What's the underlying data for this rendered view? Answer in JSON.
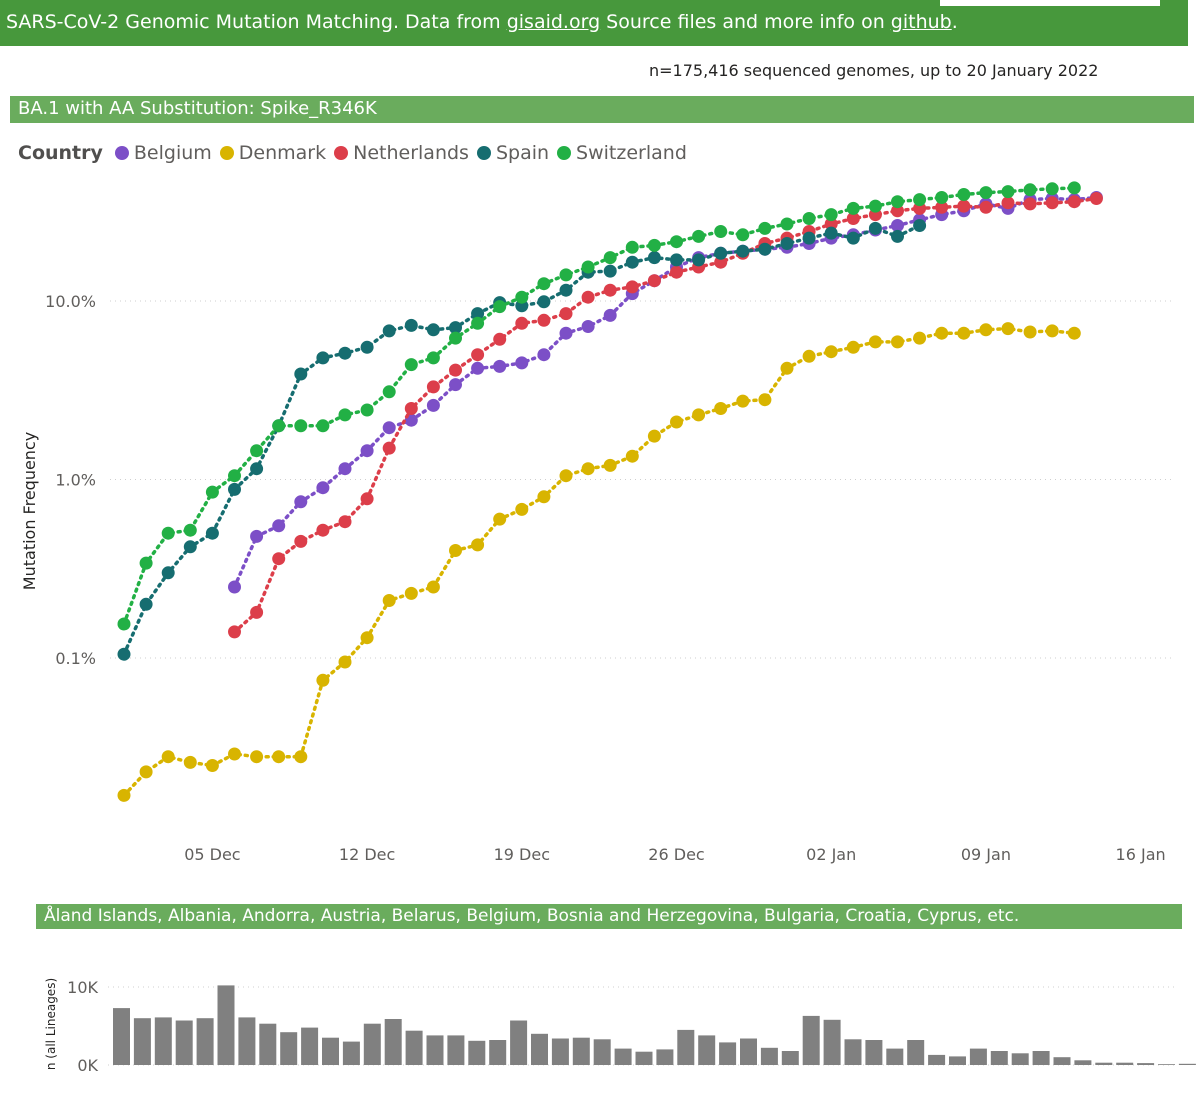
{
  "header": {
    "text_before": "SARS-CoV-2 Genomic Mutation Matching. Data from ",
    "link1": "gisaid.org",
    "text_middle": " Source files and more info on ",
    "link2": "github",
    "text_after": "."
  },
  "genome_count": "n=175,416 sequenced genomes, up to 20 January 2022",
  "colors": {
    "header_bg": "#47983c",
    "section_bg": "#6aac5d",
    "bar_color": "#808080"
  },
  "chart_data": [
    {
      "type": "line",
      "title": "BA.1 with AA Substitution: Spike_R346K",
      "ylabel": "Mutation Frequency",
      "yscale": "log",
      "ylim": [
        0.01,
        50
      ],
      "y_ticks": [
        0.1,
        1.0,
        10.0
      ],
      "y_tick_labels": [
        "0.1%",
        "1.0%",
        "10.0%"
      ],
      "x_start": "2021-12-01",
      "x_ticks": [
        {
          "day": 4,
          "label": "05 Dec"
        },
        {
          "day": 11,
          "label": "12 Dec"
        },
        {
          "day": 18,
          "label": "19 Dec"
        },
        {
          "day": 25,
          "label": "26 Dec"
        },
        {
          "day": 32,
          "label": "02 Jan"
        },
        {
          "day": 39,
          "label": "09 Jan"
        },
        {
          "day": 46,
          "label": "16 Jan"
        }
      ],
      "legend_title": "Country",
      "series": [
        {
          "name": "Belgium",
          "color": "#7c4fc7",
          "x_start": 5,
          "values": [
            0.25,
            0.48,
            0.55,
            0.75,
            0.9,
            1.15,
            1.45,
            1.95,
            2.15,
            2.6,
            3.4,
            4.2,
            4.3,
            4.5,
            5.0,
            6.6,
            7.2,
            8.3,
            11.0,
            13.0,
            15.5,
            17.5,
            18.5,
            19.0,
            19.5,
            20.0,
            21.0,
            22.5,
            23.5,
            25.0,
            26.5,
            28.5,
            30.5,
            32.0,
            35.0,
            33.0,
            37.0,
            37.5,
            37.0,
            38.0
          ]
        },
        {
          "name": "Denmark",
          "color": "#d8b400",
          "x_start": 0,
          "values": [
            0.017,
            0.023,
            0.028,
            0.026,
            0.025,
            0.029,
            0.028,
            0.028,
            0.028,
            0.075,
            0.095,
            0.13,
            0.21,
            0.23,
            0.25,
            0.4,
            0.43,
            0.6,
            0.68,
            0.8,
            1.05,
            1.15,
            1.2,
            1.35,
            1.75,
            2.1,
            2.3,
            2.5,
            2.75,
            2.8,
            4.2,
            4.9,
            5.2,
            5.5,
            5.9,
            5.9,
            6.2,
            6.6,
            6.6,
            6.9,
            7.0,
            6.7,
            6.8,
            6.6
          ]
        },
        {
          "name": "Netherlands",
          "color": "#dc3e4a",
          "x_start": 5,
          "values": [
            0.14,
            0.18,
            0.36,
            0.45,
            0.52,
            0.58,
            0.78,
            1.5,
            2.5,
            3.3,
            4.1,
            5.0,
            6.1,
            7.5,
            7.8,
            8.5,
            10.5,
            11.5,
            12.0,
            13.0,
            14.5,
            15.5,
            16.5,
            18.5,
            21.0,
            22.5,
            24.5,
            27.0,
            29.0,
            30.5,
            32.0,
            33.0,
            33.5,
            34.0,
            33.5,
            35.5,
            35.0,
            35.5,
            36.0,
            37.5
          ]
        },
        {
          "name": "Spain",
          "color": "#166d70",
          "x_start": 0,
          "values": [
            0.105,
            0.2,
            0.3,
            0.42,
            0.5,
            0.88,
            1.15,
            2.0,
            3.9,
            4.8,
            5.1,
            5.5,
            6.8,
            7.3,
            6.9,
            7.1,
            8.5,
            9.8,
            9.4,
            9.9,
            11.5,
            14.5,
            14.7,
            16.5,
            17.5,
            17.0,
            17.0,
            18.5,
            19.0,
            19.5,
            21.0,
            22.5,
            24.0,
            22.5,
            25.5,
            23.0,
            26.5
          ]
        },
        {
          "name": "Switzerland",
          "color": "#22b045",
          "x_start": 0,
          "values": [
            0.155,
            0.34,
            0.5,
            0.52,
            0.85,
            1.05,
            1.45,
            2.0,
            2.0,
            2.0,
            2.3,
            2.45,
            3.1,
            4.4,
            4.8,
            6.2,
            7.5,
            9.3,
            10.5,
            12.5,
            14.0,
            15.5,
            17.5,
            20.0,
            20.5,
            21.5,
            23.0,
            24.5,
            23.5,
            25.5,
            27.0,
            29.0,
            30.5,
            33.0,
            34.0,
            36.0,
            37.0,
            38.0,
            39.5,
            40.5,
            41.0,
            42.0,
            42.5,
            43.0
          ]
        }
      ]
    },
    {
      "type": "bar",
      "title": "Åland Islands, Albania, Andorra, Austria, Belarus, Belgium, Bosnia and Herzegovina, Bulgaria, Croatia, Cyprus, etc.",
      "ylabel": "n (all Lineages)",
      "ylim": [
        0,
        10000
      ],
      "y_ticks": [
        0,
        10000
      ],
      "y_tick_labels": [
        "0K",
        "10K"
      ],
      "values": [
        7300,
        6000,
        6100,
        5700,
        6000,
        10200,
        6100,
        5300,
        4200,
        4800,
        3500,
        3000,
        5300,
        5900,
        4400,
        3800,
        3800,
        3100,
        3200,
        5700,
        4000,
        3400,
        3500,
        3300,
        2100,
        1700,
        2000,
        4500,
        3800,
        2900,
        3400,
        2200,
        1800,
        6300,
        5800,
        3300,
        3200,
        2100,
        3200,
        1300,
        1100,
        2100,
        1800,
        1500,
        1800,
        1000,
        600,
        300,
        300,
        250,
        100,
        150
      ]
    }
  ]
}
